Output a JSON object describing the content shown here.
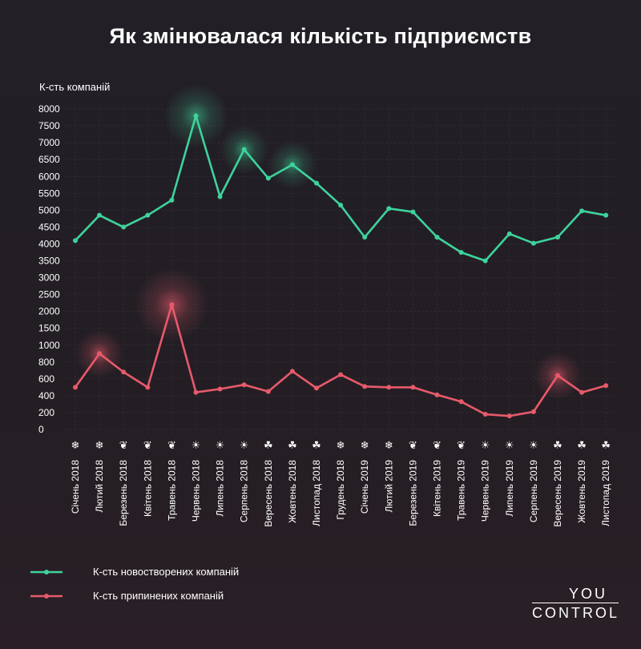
{
  "title": "Як змінювалася кількість підприємств",
  "logo": {
    "line1": "YOU",
    "line2": "CONTROL"
  },
  "colors": {
    "background": "#221f26",
    "new_series": "#3ed39c",
    "closed_series": "#e85a6b",
    "text": "#ffffff"
  },
  "chart_data": {
    "type": "line",
    "ylabel": "К-сть компаній",
    "yticks": [
      "0",
      "200",
      "400",
      "600",
      "800",
      "1000",
      "1500",
      "2000",
      "2500",
      "3000",
      "3500",
      "4000",
      "4500",
      "5000",
      "5500",
      "6000",
      "6500",
      "7000",
      "7500",
      "8000"
    ],
    "ylim": [
      0,
      8000
    ],
    "y_scale": "broken: 0–1000 in steps of 200, then 1000–8000 in steps of 500",
    "grid": true,
    "legend_position": "bottom-left",
    "categories": [
      "Січень 2018",
      "Лютий 2018",
      "Березень 2018",
      "Квітень 2018",
      "Травень 2018",
      "Червень 2018",
      "Липень 2018",
      "Серпень 2018",
      "Вересень 2018",
      "Жовтень 2018",
      "Листопад 2018",
      "Грудень 2018",
      "Січень 2019",
      "Лютий 2019",
      "Березень 2019",
      "Квітень 2019",
      "Травень 2019",
      "Червень 2019",
      "Липень 2019",
      "Серпень 2019",
      "Вересень 2019",
      "Жовтень 2019",
      "Листопад 2019"
    ],
    "season_icons": [
      "snowflake",
      "snowflake",
      "leaf",
      "leaf",
      "leaf",
      "sun",
      "sun",
      "sun",
      "maple-leaf",
      "maple-leaf",
      "maple-leaf",
      "snowflake",
      "snowflake",
      "snowflake",
      "leaf",
      "leaf",
      "leaf",
      "sun",
      "sun",
      "sun",
      "maple-leaf",
      "maple-leaf",
      "maple-leaf"
    ],
    "series": [
      {
        "name": "К-сть новостворених компаній",
        "color": "#3ed39c",
        "values": [
          4100,
          4850,
          4500,
          4850,
          5300,
          7800,
          5400,
          6800,
          5950,
          6350,
          5800,
          5150,
          4200,
          5050,
          4950,
          4200,
          3750,
          3500,
          4300,
          4020,
          4200,
          4980,
          4850
        ],
        "highlights": [
          5,
          7,
          9
        ]
      },
      {
        "name": "К-сть припинених компаній",
        "color": "#e85a6b",
        "values": [
          500,
          900,
          680,
          500,
          2200,
          440,
          480,
          530,
          450,
          690,
          490,
          650,
          510,
          500,
          500,
          410,
          330,
          180,
          160,
          210,
          640,
          440,
          520
        ],
        "highlights": [
          1,
          4,
          20
        ]
      }
    ]
  }
}
